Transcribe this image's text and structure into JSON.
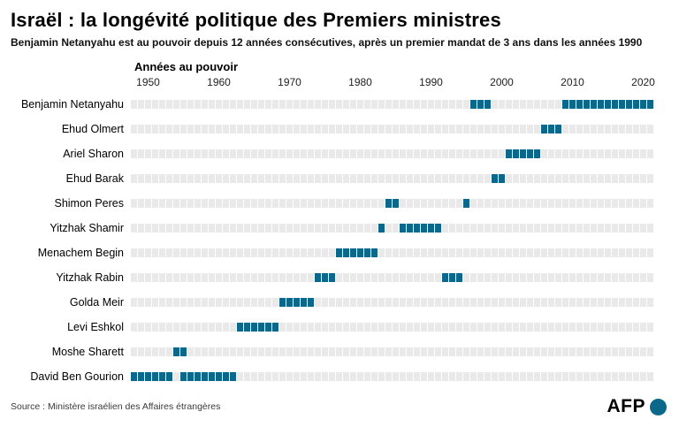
{
  "title": "Israël : la longévité politique des Premiers ministres",
  "subtitle": "Benjamin Netanyahu est au pouvoir depuis 12 années consécutives, après un premier mandat de 3 ans dans les années 1990",
  "source": "Source : Ministère israélien des Affaires étrangères",
  "logo": {
    "text": "AFP"
  },
  "colors": {
    "bar": "#0c688a",
    "empty": "#e9e9e9",
    "logo_dot": "#0c688a"
  },
  "chart_data": {
    "type": "timeline",
    "title": "Israël : la longévité politique des Premiers ministres",
    "axis_label": "Années au pouvoir",
    "year_range": [
      1948,
      2021
    ],
    "tick_years": [
      1950,
      1960,
      1970,
      1980,
      1990,
      2000,
      2010,
      2020
    ],
    "legend_position": "none",
    "grid": false,
    "rows": [
      {
        "name": "Benjamin Netanyahu",
        "terms": [
          [
            1996,
            1998
          ],
          [
            2009,
            2021
          ]
        ]
      },
      {
        "name": "Ehud Olmert",
        "terms": [
          [
            2006,
            2008
          ]
        ]
      },
      {
        "name": "Ariel Sharon",
        "terms": [
          [
            2001,
            2005
          ]
        ]
      },
      {
        "name": "Ehud Barak",
        "terms": [
          [
            1999,
            2000
          ]
        ]
      },
      {
        "name": "Shimon Peres",
        "terms": [
          [
            1984,
            1985
          ],
          [
            1995,
            1995
          ]
        ]
      },
      {
        "name": "Yitzhak Shamir",
        "terms": [
          [
            1983,
            1983
          ],
          [
            1986,
            1991
          ]
        ]
      },
      {
        "name": "Menachem Begin",
        "terms": [
          [
            1977,
            1982
          ]
        ]
      },
      {
        "name": "Yitzhak Rabin",
        "terms": [
          [
            1974,
            1976
          ],
          [
            1992,
            1994
          ]
        ]
      },
      {
        "name": "Golda Meir",
        "terms": [
          [
            1969,
            1973
          ]
        ]
      },
      {
        "name": "Levi Eshkol",
        "terms": [
          [
            1963,
            1968
          ]
        ]
      },
      {
        "name": "Moshe Sharett",
        "terms": [
          [
            1954,
            1955
          ]
        ]
      },
      {
        "name": "David Ben Gourion",
        "terms": [
          [
            1948,
            1953
          ],
          [
            1955,
            1962
          ]
        ]
      }
    ]
  }
}
